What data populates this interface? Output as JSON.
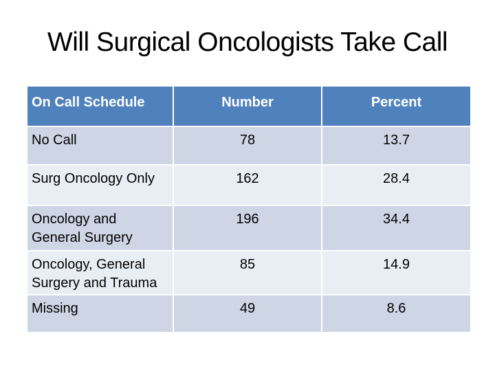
{
  "title": "Will Surgical Oncologists Take Call",
  "table": {
    "headers": [
      "On Call Schedule",
      "Number",
      "Percent"
    ],
    "rows": [
      {
        "schedule": "No Call",
        "number": "78",
        "percent": "13.7"
      },
      {
        "schedule": "Surg Oncology Only",
        "number": "162",
        "percent": "28.4"
      },
      {
        "schedule": [
          "Oncology and",
          "General Surgery"
        ],
        "number": "196",
        "percent": "34.4"
      },
      {
        "schedule": [
          "Oncology, General",
          "Surgery and Trauma"
        ],
        "number": "85",
        "percent": "14.9"
      },
      {
        "schedule": "Missing",
        "number": "49",
        "percent": "8.6"
      }
    ]
  },
  "colors": {
    "header_bg": "#4f81bd",
    "header_text": "#ffffff",
    "row_band_dark": "#ced5e4",
    "row_band_light": "#e9edf4",
    "gridline": "#ffffff",
    "title_text": "#000000",
    "cell_text": "#000000",
    "background": "#ffffff"
  },
  "chart_data": {
    "type": "table",
    "title": "Will Surgical Oncologists Take Call",
    "columns": [
      "On Call Schedule",
      "Number",
      "Percent"
    ],
    "rows": [
      [
        "No Call",
        78,
        13.7
      ],
      [
        "Surg Oncology Only",
        162,
        28.4
      ],
      [
        "Oncology and General Surgery",
        196,
        34.4
      ],
      [
        "Oncology, General Surgery and Trauma",
        85,
        14.9
      ],
      [
        "Missing",
        49,
        8.6
      ]
    ]
  }
}
